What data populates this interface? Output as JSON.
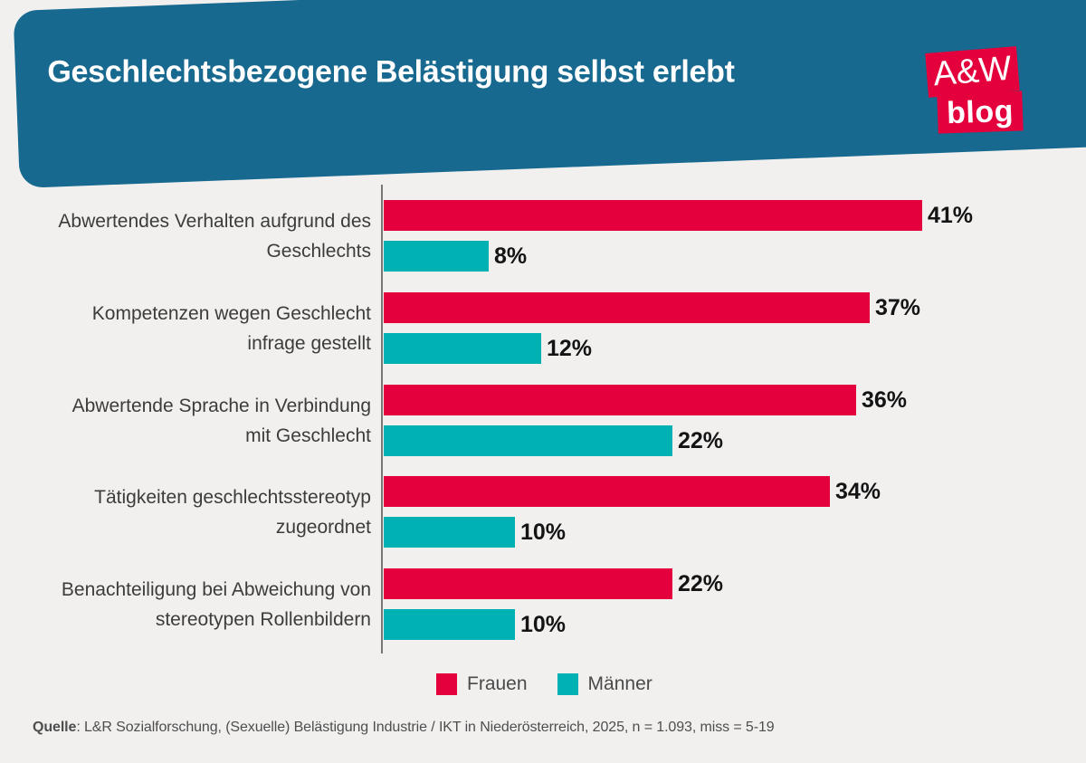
{
  "header": {
    "title": "Geschlechtsbezogene Belästigung selbst erlebt",
    "logo": {
      "top": "A&W",
      "bottom": "blog"
    }
  },
  "chart_data": {
    "type": "bar",
    "orientation": "horizontal",
    "title": "Geschlechtsbezogene Belästigung selbst erlebt",
    "categories": [
      "Abwertendes Verhalten aufgrund des\nGeschlechts",
      "Kompetenzen wegen Geschlecht\ninfrage gestellt",
      "Abwertende Sprache in Verbindung\nmit Geschlecht",
      "Tätigkeiten geschlechtsstereotyp\nzugeordnet",
      "Benachteiligung bei Abweichung von\nstereotypen Rollenbildern"
    ],
    "series": [
      {
        "name": "Frauen",
        "color": "#E4003C",
        "values": [
          41,
          37,
          36,
          34,
          22
        ]
      },
      {
        "name": "Männer",
        "color": "#00B1B4",
        "values": [
          8,
          12,
          22,
          10,
          10
        ]
      }
    ],
    "value_suffix": "%",
    "xlim": [
      0,
      45
    ],
    "grid": false,
    "legend_position": "bottom"
  },
  "legend": {
    "items": [
      {
        "label": "Frauen",
        "color": "#E4003C"
      },
      {
        "label": "Männer",
        "color": "#00B1B4"
      }
    ]
  },
  "source": {
    "label": "Quelle",
    "text": ": L&R Sozialforschung, (Sexuelle) Belästigung Industrie / IKT in Niederösterreich, 2025, n = 1.093, miss = 5-19"
  },
  "colors": {
    "background": "#F1F0EF",
    "banner": "#17698F",
    "logo_red": "#E4003C",
    "bar_frauen": "#E4003C",
    "bar_maenner": "#00B1B4",
    "axis": "#767676",
    "label_text": "#3C3C3B",
    "value_text": "#141414"
  }
}
